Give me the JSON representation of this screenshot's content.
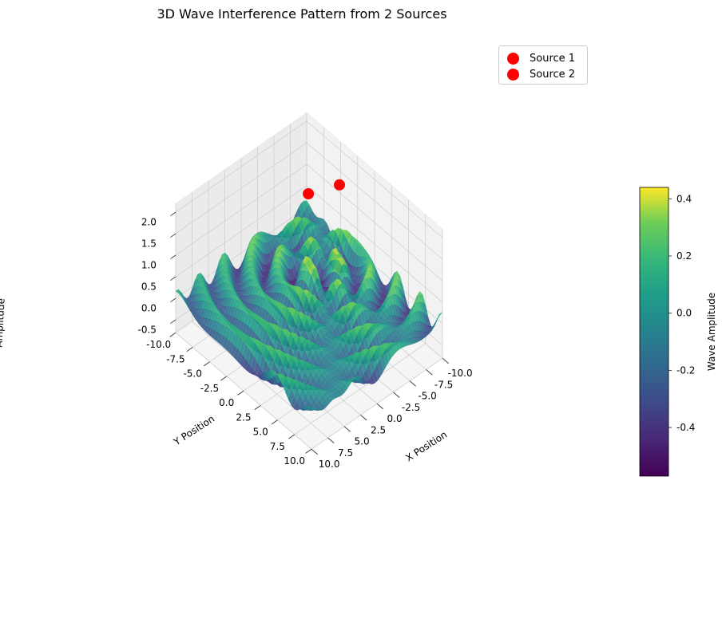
{
  "chart_data": {
    "type": "surface3d",
    "title": "3D Wave Interference Pattern from 2 Sources",
    "xlabel": "X Position",
    "ylabel": "Y Position",
    "zlabel": "Amplitude",
    "xlim": [
      -10,
      10
    ],
    "ylim": [
      -10,
      10
    ],
    "zlim": [
      -0.8,
      2.2
    ],
    "x_ticks": [
      "-10.0",
      "-7.5",
      "-5.0",
      "-2.5",
      "0.0",
      "2.5",
      "5.0",
      "7.5",
      "10.0"
    ],
    "y_ticks": [
      "-10.0",
      "-7.5",
      "-5.0",
      "-2.5",
      "0.0",
      "2.5",
      "5.0",
      "7.5",
      "10.0"
    ],
    "z_ticks": [
      "-0.5",
      "0.0",
      "0.5",
      "1.0",
      "1.5",
      "2.0"
    ],
    "sources": [
      {
        "name": "Source 1",
        "x": -3,
        "y": -3,
        "z": 2,
        "color": "#ff0000"
      },
      {
        "name": "Source 2",
        "x": -1.8,
        "y": -6.5,
        "z": 2,
        "color": "#ff0000"
      }
    ],
    "colorbar": {
      "label": "Wave Amplitude",
      "range": [
        -0.57,
        0.44
      ],
      "ticks": [
        "-0.4",
        "-0.2",
        "0.0",
        "0.2",
        "0.4"
      ],
      "tick_values": [
        -0.4,
        -0.2,
        0.0,
        0.2,
        0.4
      ],
      "colormap": "viridis"
    },
    "legend_position": "top-right",
    "grid": true
  }
}
